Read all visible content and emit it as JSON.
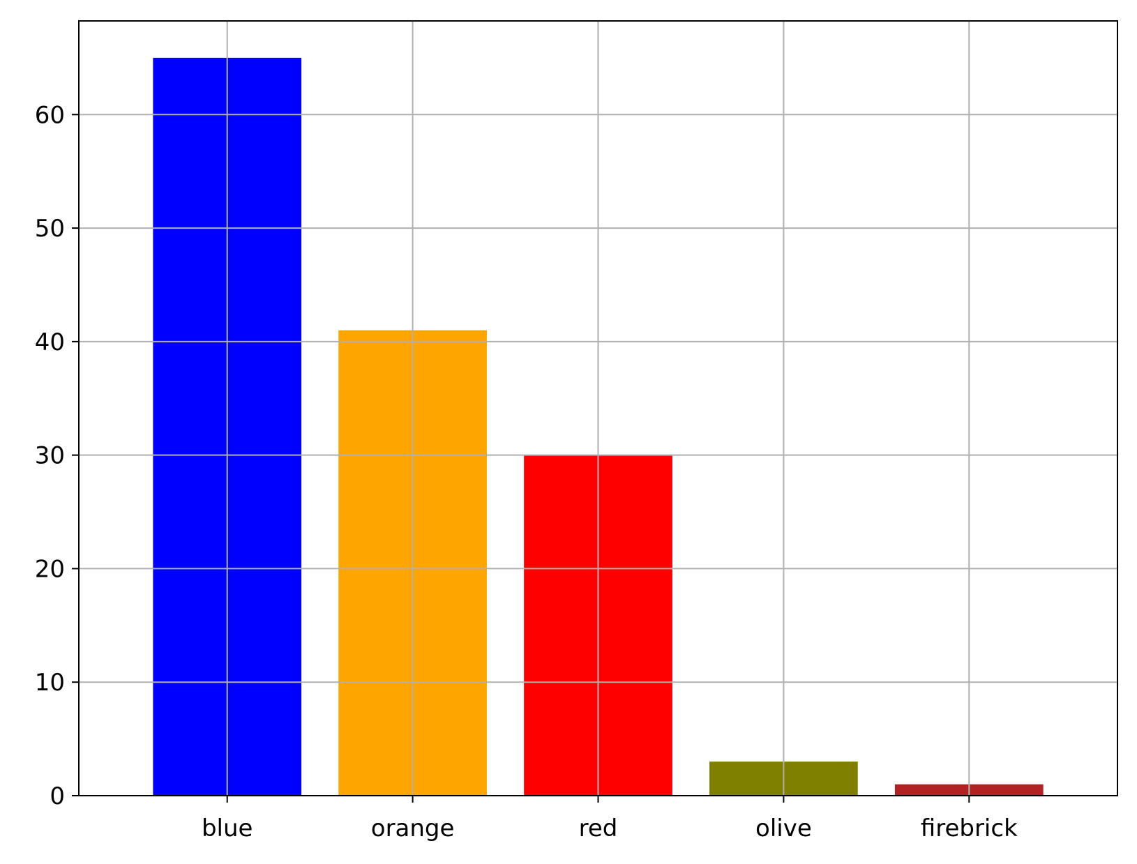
{
  "chart_data": {
    "type": "bar",
    "title": "",
    "xlabel": "",
    "ylabel": "",
    "categories": [
      "blue",
      "orange",
      "red",
      "olive",
      "firebrick"
    ],
    "values": [
      65,
      41,
      30,
      3,
      1
    ],
    "colors": [
      "#0000ff",
      "#ffa500",
      "#ff0000",
      "#808000",
      "#b22222"
    ],
    "ylim": [
      0,
      68.25
    ],
    "yticks": [
      0,
      10,
      20,
      30,
      40,
      50,
      60
    ],
    "ytick_labels": [
      "0",
      "10",
      "20",
      "30",
      "40",
      "50",
      "60"
    ],
    "grid": true,
    "legend": "none"
  }
}
